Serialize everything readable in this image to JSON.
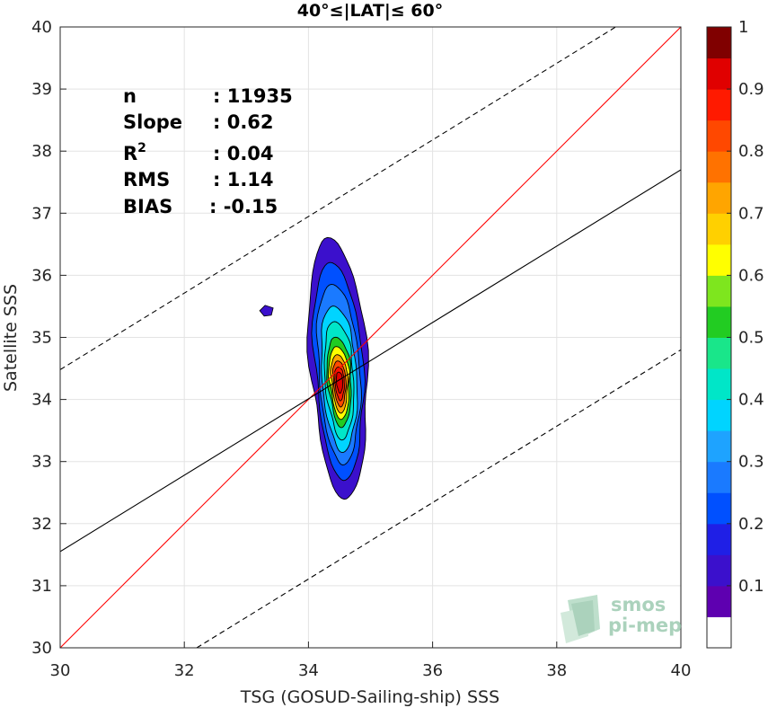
{
  "chart_data": {
    "type": "contour-density-scatter",
    "title": "40°≤|LAT|≤ 60°",
    "xlabel": "TSG (GOSUD-Sailing-ship) SSS",
    "ylabel": "Satellite SSS",
    "xlim": [
      30,
      40
    ],
    "ylim": [
      30,
      40
    ],
    "xticks": [
      "30",
      "32",
      "34",
      "36",
      "38",
      "40"
    ],
    "yticks": [
      "30",
      "31",
      "32",
      "33",
      "34",
      "35",
      "36",
      "37",
      "38",
      "39",
      "40"
    ],
    "grid": true,
    "stats": [
      {
        "label": "n",
        "value": ": 11935"
      },
      {
        "label": "Slope",
        "value": ": 0.62"
      },
      {
        "label": "R",
        "sup": "2",
        "value": ": 0.04"
      },
      {
        "label": "RMS",
        "value": ": 1.14"
      },
      {
        "label": "BIAS",
        "value": ": -0.15"
      }
    ],
    "lines": {
      "one_to_one": {
        "x": [
          30,
          40
        ],
        "y": [
          30,
          40
        ],
        "color": "#ff0000"
      },
      "regression": {
        "x": [
          30,
          40
        ],
        "y": [
          31.55,
          37.7
        ],
        "color": "#000000"
      },
      "upper_bound": {
        "x": [
          30,
          38.95
        ],
        "y": [
          34.48,
          40
        ],
        "color": "#000000",
        "style": "dashed"
      },
      "lower_bound": {
        "x": [
          32.2,
          40
        ],
        "y": [
          30,
          34.8
        ],
        "color": "#000000",
        "style": "dashed"
      }
    },
    "density_center": {
      "x": 34.5,
      "y": 34.3
    },
    "isolated_blob": {
      "x": 33.33,
      "y": 35.43
    },
    "colorbar": {
      "ticks": [
        "0.1",
        "0.2",
        "0.3",
        "0.4",
        "0.5",
        "0.6",
        "0.7",
        "0.8",
        "0.9",
        "1"
      ],
      "colors": [
        "#ffffff",
        "#5e00b0",
        "#3b10cc",
        "#1f1fe6",
        "#0050ff",
        "#1a7aff",
        "#1ea3ff",
        "#00d4ff",
        "#00e6c8",
        "#19e68a",
        "#22cc22",
        "#7ee61e",
        "#ffff00",
        "#ffd000",
        "#ffa500",
        "#ff7200",
        "#ff4800",
        "#ff1a00",
        "#e00000",
        "#800000"
      ]
    }
  },
  "watermark": {
    "line1": "smos",
    "line2": "pi-mep"
  }
}
